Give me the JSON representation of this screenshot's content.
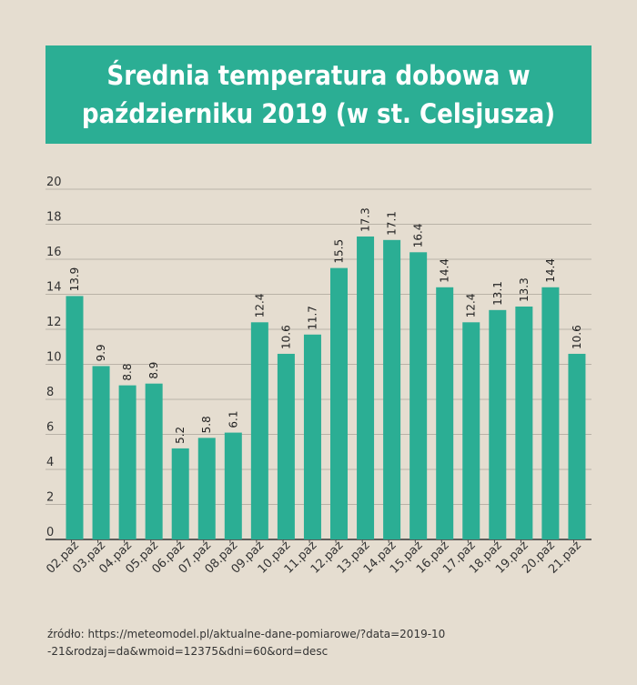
{
  "title": "Średnia temperatura dobowa w październiku 2019 (w st. Celsjusza)",
  "source": "źródło: https://meteomodel.pl/aktualne-dane-pomiarowe/?data=2019-10-21&rodzaj=da&wmoid=12375&dni=60&ord=desc",
  "colors": {
    "bar": "#2bae94",
    "background": "#e5ddd0",
    "grid": "#b9b2a7"
  },
  "chart_data": {
    "type": "bar",
    "categories": [
      "02.paź",
      "03.paź",
      "04.paź",
      "05.paź",
      "06.paź",
      "07.paź",
      "08.paź",
      "09.paź",
      "10.paź",
      "11.paź",
      "12.paź",
      "13.paź",
      "14.paź",
      "15.paź",
      "16.paź",
      "17.paź",
      "18.paź",
      "19.paź",
      "20.paź",
      "21.paź"
    ],
    "values": [
      13.9,
      9.9,
      8.8,
      8.9,
      5.2,
      5.8,
      6.1,
      12.4,
      10.6,
      11.7,
      15.5,
      17.3,
      17.1,
      16.4,
      14.4,
      12.4,
      13.1,
      13.3,
      14.4,
      10.6
    ],
    "data_labels": [
      "13.9",
      "9.9",
      "8.8",
      "8.9",
      "5.2",
      "5.8",
      "6.1",
      "12.4",
      "10.6",
      "11.7",
      "15.5",
      "17.3",
      "17.1",
      "16.4",
      "14.4",
      "12.4",
      "13.1",
      "13.3",
      "14.4",
      "10.6"
    ],
    "yticks": [
      "0",
      "2",
      "4",
      "6",
      "8",
      "10",
      "12",
      "14",
      "16",
      "18",
      "20"
    ],
    "ylim": [
      0,
      20
    ],
    "grid": true
  }
}
